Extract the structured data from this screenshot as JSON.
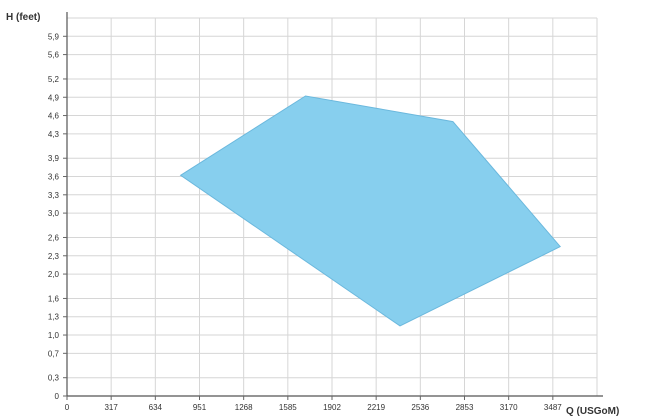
{
  "chart_data": {
    "type": "area",
    "title": "",
    "xlabel": "Q (USGoM)",
    "ylabel": "H (feet)",
    "xlim": [
      0,
      3804
    ],
    "ylim": [
      0,
      6.2
    ],
    "x_ticks": [
      0,
      317,
      634,
      951,
      1268,
      1585,
      1902,
      2219,
      2536,
      2853,
      3170,
      3487
    ],
    "x_tick_labels": [
      "0",
      "317",
      "634",
      "951",
      "1268",
      "1585",
      "1902",
      "2219",
      "2536",
      "2853",
      "3170",
      "3487"
    ],
    "y_ticks": [
      0,
      0.3,
      0.7,
      1.0,
      1.3,
      1.6,
      2.0,
      2.3,
      2.6,
      3.0,
      3.3,
      3.6,
      3.9,
      4.3,
      4.6,
      4.9,
      5.2,
      5.6,
      5.9
    ],
    "y_tick_labels": [
      "0",
      "0,3",
      "0,7",
      "1,0",
      "1,3",
      "1,6",
      "2,0",
      "2,3",
      "2,6",
      "3,0",
      "3,3",
      "3,6",
      "3,9",
      "4,3",
      "4,6",
      "4,9",
      "5,2",
      "5,6",
      "5,9"
    ],
    "grid": true,
    "series": [
      {
        "points": [
          {
            "x": 815,
            "y": 3.62
          },
          {
            "x": 1712,
            "y": 4.92
          },
          {
            "x": 2770,
            "y": 4.5
          },
          {
            "x": 3540,
            "y": 2.45
          },
          {
            "x": 2390,
            "y": 1.15
          },
          {
            "x": 815,
            "y": 3.62
          }
        ],
        "color": "#87CFEE",
        "edge_color": "#6BB8DD"
      }
    ]
  }
}
